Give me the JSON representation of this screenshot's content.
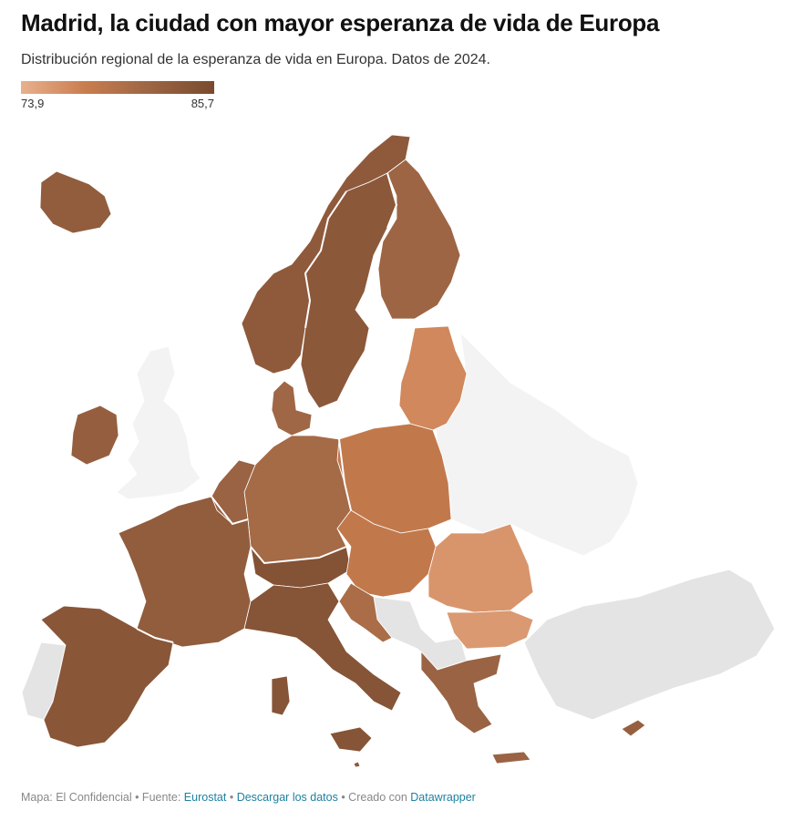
{
  "header": {
    "title": "Madrid, la ciudad con mayor esperanza de vida de Europa",
    "subtitle": "Distribución regional de la esperanza de vida en Europa. Datos de 2024."
  },
  "legend": {
    "min_label": "73,9",
    "max_label": "85,7",
    "min_value": 73.9,
    "max_value": 85.7,
    "colors": [
      "#e9b08e",
      "#c97d4e",
      "#9c6544",
      "#7a4a2e"
    ]
  },
  "map": {
    "no_data_color": "#e4e4e4",
    "outside_color": "#f3f3f3",
    "regions": [
      {
        "id": "iceland",
        "value": 83.0
      },
      {
        "id": "ireland",
        "value": 82.6
      },
      {
        "id": "norway",
        "value": 83.3
      },
      {
        "id": "sweden",
        "value": 83.6
      },
      {
        "id": "finland",
        "value": 81.7
      },
      {
        "id": "baltics",
        "value": 77.0
      },
      {
        "id": "denmark",
        "value": 81.5
      },
      {
        "id": "poland",
        "value": 78.5
      },
      {
        "id": "germany",
        "value": 81.0
      },
      {
        "id": "benelux",
        "value": 82.0
      },
      {
        "id": "france",
        "value": 83.0
      },
      {
        "id": "spain",
        "value": 84.0
      },
      {
        "id": "italy",
        "value": 84.3
      },
      {
        "id": "alps",
        "value": 84.5
      },
      {
        "id": "czech_slovakia_hungary",
        "value": 78.5
      },
      {
        "id": "romania",
        "value": 76.0
      },
      {
        "id": "bulgaria",
        "value": 75.7
      },
      {
        "id": "greece",
        "value": 82.0
      },
      {
        "id": "croatia_slovenia",
        "value": 80.5
      },
      {
        "id": "cyprus",
        "value": 82.5
      },
      {
        "id": "malta",
        "value": 83.5
      }
    ]
  },
  "footer": {
    "map_credit": "Mapa: El Confidencial",
    "sep1": " • Fuente: ",
    "source_link": "Eurostat",
    "sep2": " • ",
    "download_link": "Descargar los datos",
    "sep3": " • Creado con ",
    "tool_link": "Datawrapper"
  }
}
